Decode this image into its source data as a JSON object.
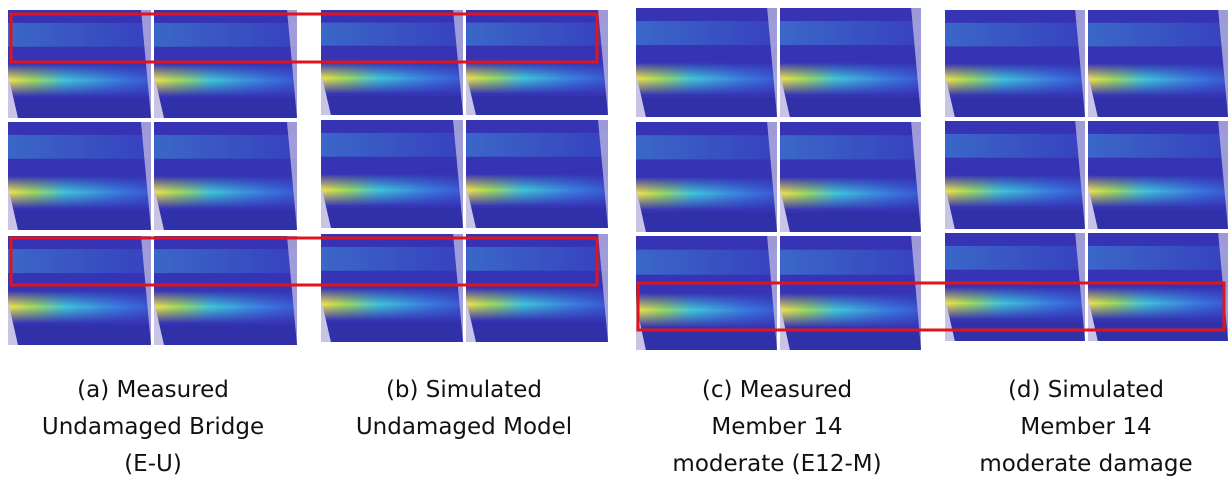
{
  "captions": [
    {
      "lines": [
        "(a) Measured",
        "Undamaged Bridge",
        "(E-U)"
      ]
    },
    {
      "lines": [
        "(b) Simulated",
        "Undamaged Model"
      ]
    },
    {
      "lines": [
        "(c) Measured",
        "Member 14",
        "moderate (E12-M)"
      ]
    },
    {
      "lines": [
        "(d) Simulated",
        "Member 14",
        "moderate damage"
      ]
    }
  ]
}
